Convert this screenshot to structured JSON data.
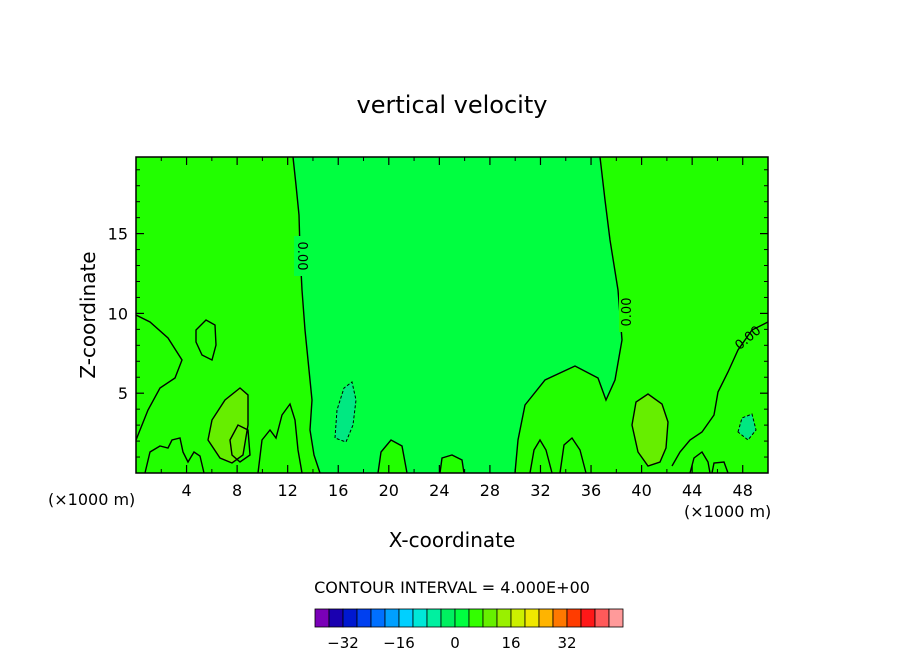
{
  "chart_data": {
    "type": "contour",
    "title": "vertical velocity",
    "xlabel": "X-coordinate",
    "ylabel": "Z-coordinate",
    "x_unit_label": "(×1000 m)",
    "xlim": [
      0,
      50
    ],
    "ylim": [
      0,
      19.8
    ],
    "x_ticks": [
      4,
      8,
      12,
      16,
      20,
      24,
      28,
      32,
      36,
      40,
      44,
      48
    ],
    "y_ticks": [
      5,
      10,
      15
    ],
    "contour_interval_label": "CONTOUR INTERVAL = 4.000E+00",
    "contour_labels": [
      "0.00",
      "0.00",
      "0.00"
    ],
    "colorbar": {
      "tick_labels": [
        "−32",
        "−16",
        "0",
        "16",
        "32"
      ],
      "tick_values": [
        -32,
        -16,
        0,
        16,
        32
      ],
      "level_min": -40,
      "level_step": 4,
      "colors": [
        "#7a00b8",
        "#1a00b0",
        "#0018d0",
        "#0040f0",
        "#0070ff",
        "#00a0ff",
        "#00d0ff",
        "#00e8d8",
        "#00f0a0",
        "#00f060",
        "#00ff40",
        "#33ff00",
        "#66f000",
        "#99f000",
        "#ccf000",
        "#f0e800",
        "#ffb400",
        "#ff7800",
        "#ff3c00",
        "#ff1818",
        "#ff5a5a",
        "#ff9a9a"
      ]
    },
    "field": {
      "background_level_color": "#00ff40",
      "positive_zone_color": "#22ff00",
      "positive_strong_color": "#66ee00",
      "negative_zone_color": "#00e882"
    }
  }
}
